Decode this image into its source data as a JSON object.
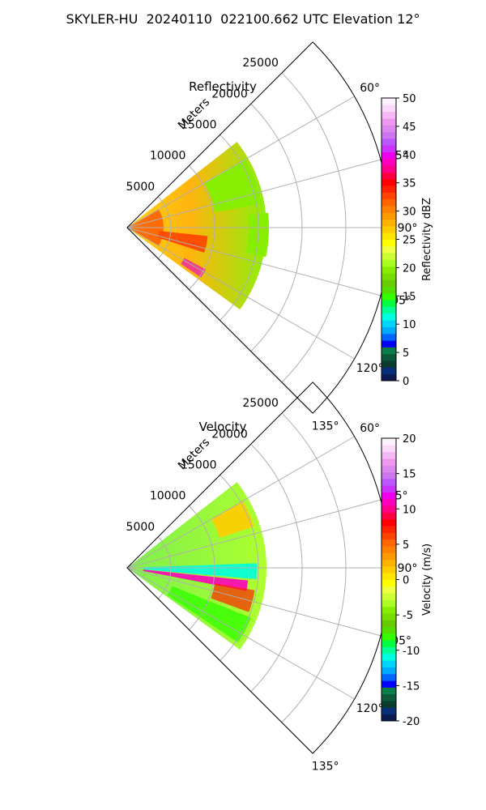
{
  "title": "SKYLER-HU  20240110  022100.662 UTC Elevation 12°",
  "chart_data": [
    {
      "type": "polar-sector",
      "title": "Reflectivity",
      "range_label": "Meters",
      "range_ticks": [
        "5000",
        "10000",
        "15000",
        "20000",
        "25000"
      ],
      "range_max": 30000,
      "angle_ticks": [
        "60°",
        "75°",
        "90°",
        "105°",
        "120°",
        "135°"
      ],
      "angle_values": [
        60,
        75,
        90,
        105,
        120,
        135
      ],
      "angle_range": [
        45,
        135
      ],
      "colorbar": {
        "label": "Reflectivity dBZ",
        "min": 0,
        "max": 50,
        "ticks": [
          "0",
          "5",
          "10",
          "15",
          "20",
          "25",
          "30",
          "35",
          "40",
          "45",
          "50"
        ],
        "colors": [
          "#0b1b52",
          "#0a2f7a",
          "#0a3b2f",
          "#0c5a3a",
          "#0a7f4a",
          "#0000ff",
          "#0066ff",
          "#00aaff",
          "#00d5ff",
          "#00ffe0",
          "#00ff99",
          "#00ff44",
          "#33ff00",
          "#55dd00",
          "#66cc00",
          "#77dd00",
          "#88ee00",
          "#aaff22",
          "#ccff33",
          "#eeff44",
          "#ffff00",
          "#ffe600",
          "#ffcc00",
          "#ffb300",
          "#ff9900",
          "#ff8000",
          "#ff6600",
          "#ff4400",
          "#ff2200",
          "#ff0000",
          "#ff0044",
          "#ff0088",
          "#ff00bb",
          "#ee00ee",
          "#cc33ff",
          "#bb55ff",
          "#cc77ee",
          "#dd88ee",
          "#ee99ee",
          "#f4b8f4",
          "#f9d8f9",
          "#fdf0fd"
        ]
      }
    },
    {
      "type": "polar-sector",
      "title": "Velocity",
      "range_label": "Meters",
      "range_ticks": [
        "5000",
        "10000",
        "15000",
        "20000",
        "25000"
      ],
      "range_max": 30000,
      "angle_ticks": [
        "60°",
        "75°",
        "90°",
        "105°",
        "120°",
        "135°"
      ],
      "angle_values": [
        60,
        75,
        90,
        105,
        120,
        135
      ],
      "angle_range": [
        45,
        135
      ],
      "colorbar": {
        "label": "Velocity (m/s)",
        "min": -20,
        "max": 20,
        "ticks": [
          "-20",
          "-15",
          "-10",
          "-5",
          "0",
          "5",
          "10",
          "15",
          "20"
        ],
        "colors": [
          "#0b1b52",
          "#0a2f7a",
          "#0a3b2f",
          "#0c5a3a",
          "#0a7f4a",
          "#0000ff",
          "#0066ff",
          "#00aaff",
          "#00d5ff",
          "#00ffe0",
          "#00ff99",
          "#00ff44",
          "#33ff00",
          "#55dd00",
          "#66cc00",
          "#77dd00",
          "#88ee00",
          "#aaff22",
          "#ccff33",
          "#eeff44",
          "#ffff00",
          "#ffe600",
          "#ffcc00",
          "#ffb300",
          "#ff9900",
          "#ff8000",
          "#ff6600",
          "#ff4400",
          "#ff2200",
          "#ff0000",
          "#ff0044",
          "#ff0088",
          "#ff00bb",
          "#ee00ee",
          "#cc33ff",
          "#bb55ff",
          "#cc77ee",
          "#dd88ee",
          "#ee99ee",
          "#f4b8f4",
          "#f9d8f9",
          "#fdf0fd"
        ]
      }
    }
  ]
}
